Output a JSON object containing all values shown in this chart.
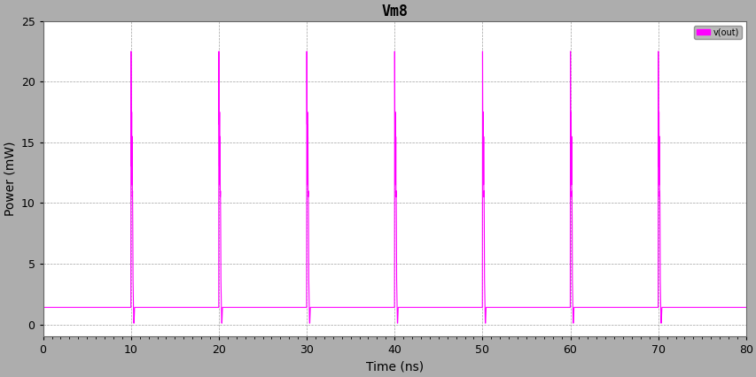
{
  "title": "Vm8",
  "xlabel": "Time (ns)",
  "ylabel": "Power (mW)",
  "xlim": [
    0,
    80
  ],
  "ylim": [
    -1,
    25
  ],
  "yticks": [
    0,
    5,
    10,
    15,
    20,
    25
  ],
  "xticks": [
    0,
    10,
    20,
    30,
    40,
    50,
    60,
    70,
    80
  ],
  "line_color": "#FF00FF",
  "bg_color": "#ADADAD",
  "plot_bg_color": "#FFFFFF",
  "legend_label": "v(out)",
  "legend_color": "#FF00FF",
  "baseline": 1.4,
  "near_zero": 0.1,
  "spike_centers": [
    10,
    20,
    30,
    40,
    50,
    60,
    70
  ],
  "spike_peak": 22.5,
  "spike_secondary": 16.5,
  "spike_third": 13.0,
  "spike_fourth": 10.5,
  "title_fontsize": 12,
  "label_fontsize": 10,
  "tick_fontsize": 9
}
